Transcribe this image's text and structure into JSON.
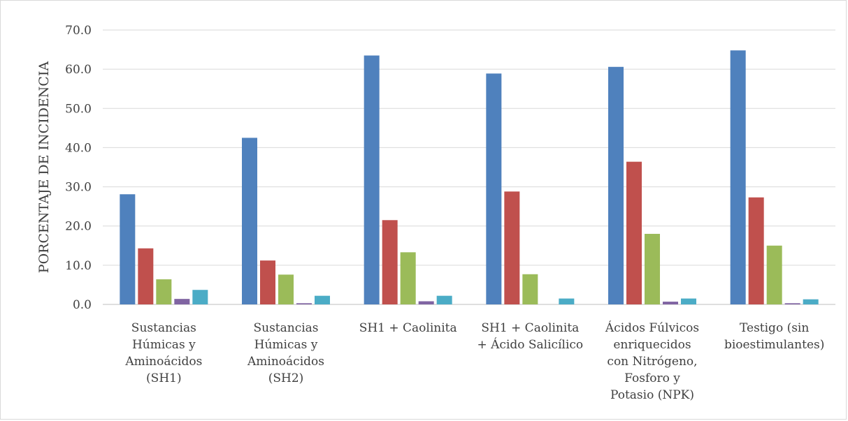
{
  "chart_data": {
    "type": "bar",
    "title": "",
    "xlabel": "",
    "ylabel": "PORCENTAJE DE INCIDENCIA",
    "ylim": [
      0,
      70
    ],
    "yticks": [
      "0.0",
      "10.0",
      "20.0",
      "30.0",
      "40.0",
      "50.0",
      "60.0",
      "70.0"
    ],
    "grid": true,
    "legend": "none",
    "categories": [
      [
        "Sustancias",
        "Húmicas y",
        "Aminoácidos",
        "(SH1)"
      ],
      [
        "Sustancias",
        "Húmicas y",
        "Aminoácidos",
        "(SH2)"
      ],
      [
        "SH1 + Caolinita"
      ],
      [
        "SH1 + Caolinita",
        "+ Ácido Salicílico"
      ],
      [
        "Ácidos Fúlvicos",
        "enriquecidos",
        "con Nitrógeno,",
        "Fosforo y",
        "Potasio (NPK)"
      ],
      [
        "Testigo (sin",
        "bioestimulantes)"
      ]
    ],
    "series": [
      {
        "color": "#4f81bd",
        "values": [
          28.1,
          42.5,
          63.5,
          58.9,
          60.6,
          64.8
        ]
      },
      {
        "color": "#c0504d",
        "values": [
          14.3,
          11.2,
          21.5,
          28.8,
          36.4,
          27.3
        ]
      },
      {
        "color": "#9bbb59",
        "values": [
          6.4,
          7.6,
          13.3,
          7.7,
          18.0,
          15.0
        ]
      },
      {
        "color": "#8064a2",
        "values": [
          1.4,
          0.3,
          0.8,
          0.0,
          0.7,
          0.3
        ]
      },
      {
        "color": "#4bacc6",
        "values": [
          3.7,
          2.2,
          2.2,
          1.5,
          1.5,
          1.3
        ]
      }
    ]
  }
}
